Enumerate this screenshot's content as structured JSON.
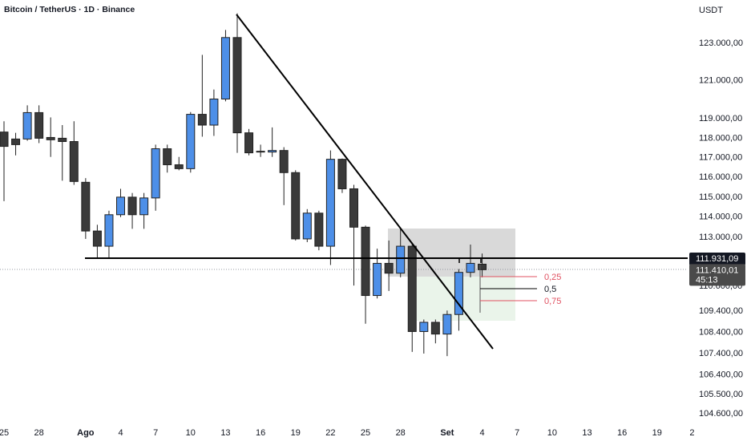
{
  "chart_data": {
    "type": "candlestick",
    "title": "Bitcoin / TetherUS · 1D · Binance",
    "y_axis_label": "USDT",
    "log_scale": true,
    "up_color": "#4d8fe8",
    "down_color": "#3a3a3a",
    "categories": [
      "25",
      null,
      null,
      "28",
      null,
      null,
      null,
      "Ago",
      null,
      null,
      "4",
      null,
      null,
      "7",
      null,
      null,
      "10",
      null,
      null,
      "13",
      null,
      null,
      "16",
      null,
      null,
      "19",
      null,
      null,
      "22",
      null,
      null,
      "25",
      null,
      null,
      "28",
      null,
      null,
      null,
      "Set",
      null,
      null,
      "4",
      null,
      null,
      "7",
      null,
      null,
      "10",
      null,
      null,
      "13",
      null,
      null,
      "16",
      null,
      null,
      "19",
      null,
      null,
      "2"
    ],
    "open": [
      118320,
      117960,
      117960,
      119330,
      118040,
      118000,
      117830,
      115750,
      113310,
      112560,
      114120,
      115000,
      114120,
      114960,
      117460,
      116640,
      116440,
      119240,
      118680,
      120040,
      123310,
      118280,
      117330,
      117290,
      117370,
      116240,
      112920,
      114200,
      112560,
      116920,
      115420,
      113500,
      110160,
      111720,
      111240,
      112560,
      108440,
      108880,
      108320,
      109250,
      111280,
      111680,
      null,
      null,
      null,
      null,
      null,
      null,
      null,
      null,
      null,
      null,
      null,
      null,
      null,
      null,
      null,
      null,
      null,
      null
    ],
    "high": [
      118880,
      118280,
      119710,
      119710,
      119080,
      118680,
      118880,
      115960,
      113620,
      114320,
      115420,
      115210,
      115210,
      117670,
      117670,
      117040,
      119360,
      122380,
      120540,
      123720,
      124620,
      118480,
      117670,
      118560,
      117540,
      116360,
      114400,
      114320,
      117370,
      116960,
      115620,
      113580,
      112440,
      112840,
      113420,
      112640,
      109010,
      109010,
      109440,
      111440,
      112640,
      112200,
      null,
      null,
      null,
      null,
      null,
      null,
      null,
      null,
      null,
      null,
      null,
      null,
      null,
      null,
      null,
      null,
      null,
      null
    ],
    "low": [
      114800,
      117120,
      117870,
      117750,
      117040,
      115830,
      115620,
      112920,
      111960,
      111960,
      114000,
      113420,
      113420,
      114320,
      116240,
      116360,
      116240,
      118080,
      118120,
      119920,
      117250,
      117120,
      117040,
      117040,
      114600,
      112840,
      112760,
      112360,
      111640,
      115210,
      110640,
      108810,
      110020,
      110380,
      111040,
      107480,
      107400,
      107880,
      107280,
      108480,
      111040,
      111040,
      null,
      null,
      null,
      null,
      null,
      null,
      null,
      null,
      null,
      null,
      null,
      null,
      null,
      null,
      null,
      null,
      null,
      null
    ],
    "close": [
      117580,
      117670,
      119330,
      118000,
      117920,
      117830,
      115790,
      113310,
      112560,
      114120,
      115000,
      114120,
      114960,
      117460,
      116640,
      116440,
      119240,
      118680,
      120040,
      123310,
      118280,
      117250,
      117290,
      117370,
      116240,
      112920,
      114200,
      112560,
      116920,
      115420,
      113500,
      110160,
      111720,
      111240,
      112560,
      108440,
      108880,
      108320,
      109250,
      111280,
      111720,
      111410.01,
      null,
      null,
      null,
      null,
      null,
      null,
      null,
      null,
      null,
      null,
      null,
      null,
      null,
      null,
      null,
      null,
      null,
      null
    ],
    "ylim": [
      104100,
      125350
    ],
    "yticks": [
      {
        "value": 123000,
        "label": "123.000,00"
      },
      {
        "value": 121000,
        "label": "121.000,00"
      },
      {
        "value": 119000,
        "label": "119.000,00"
      },
      {
        "value": 118000,
        "label": "118.000,00"
      },
      {
        "value": 117000,
        "label": "117.000,00"
      },
      {
        "value": 116000,
        "label": "116.000,00"
      },
      {
        "value": 115000,
        "label": "115.000,00"
      },
      {
        "value": 114000,
        "label": "114.000,00"
      },
      {
        "value": 113000,
        "label": "113.000,00"
      },
      {
        "value": 110600,
        "label": "110.600,00"
      },
      {
        "value": 109400,
        "label": "109.400,00"
      },
      {
        "value": 108400,
        "label": "108.400,00"
      },
      {
        "value": 107400,
        "label": "107.400,00"
      },
      {
        "value": 106400,
        "label": "106.400,00"
      },
      {
        "value": 105500,
        "label": "105.500,00"
      },
      {
        "value": 104600,
        "label": "104.600,00"
      }
    ],
    "horizontal_line": {
      "value": 111931.09,
      "label": "111.931,09"
    },
    "last_price": {
      "value": 111410.01,
      "label": "111.410,01"
    },
    "countdown": "45:13",
    "fib_labels": [
      "0,25",
      "0,5",
      "0,75"
    ]
  }
}
